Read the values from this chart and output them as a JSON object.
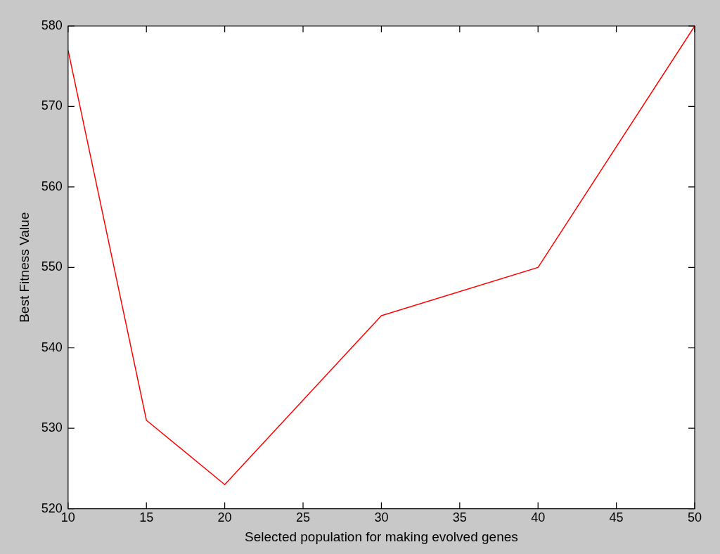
{
  "chart_data": {
    "type": "line",
    "xlabel": "Selected population for making evolved genes",
    "ylabel": "Best Fitness Value",
    "x": [
      10,
      15,
      20,
      30,
      40,
      50
    ],
    "series": [
      {
        "color": "#ff0000",
        "values": [
          577,
          531,
          523,
          544,
          550,
          580
        ]
      }
    ],
    "xlim": [
      10,
      50
    ],
    "xticks": [
      10,
      15,
      20,
      25,
      30,
      35,
      40,
      45,
      50
    ],
    "ylim": [
      520,
      580
    ],
    "yticks": [
      520,
      530,
      540,
      550,
      560,
      570,
      580
    ],
    "grid": false,
    "legend": false,
    "marker": "none",
    "line_style": "solid"
  }
}
